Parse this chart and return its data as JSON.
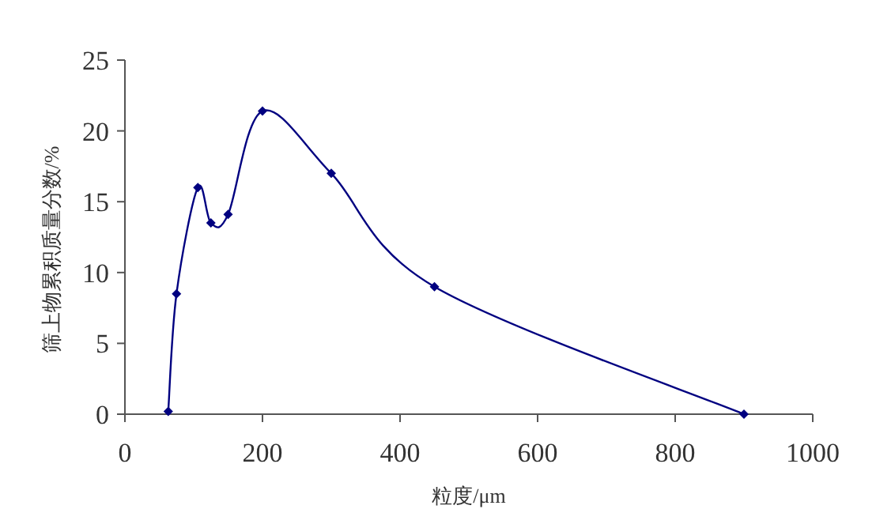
{
  "chart_data": {
    "type": "line",
    "xlabel": "粒度/μm",
    "ylabel": "筛上物累积质量分数/%",
    "series": [
      {
        "color": "#000080",
        "x": [
          63,
          75,
          106,
          125,
          150,
          200,
          300,
          450,
          900
        ],
        "values": [
          0.2,
          8.5,
          16,
          13.5,
          14.1,
          21.4,
          17,
          9,
          0
        ]
      }
    ],
    "xlim": [
      0,
      1000
    ],
    "xticks": [
      0,
      200,
      400,
      600,
      800,
      1000
    ],
    "ylim": [
      0,
      25
    ],
    "yticks": [
      0,
      5,
      10,
      15,
      20,
      25
    ],
    "grid": false,
    "marker": "diamond",
    "line_style": "solid"
  }
}
